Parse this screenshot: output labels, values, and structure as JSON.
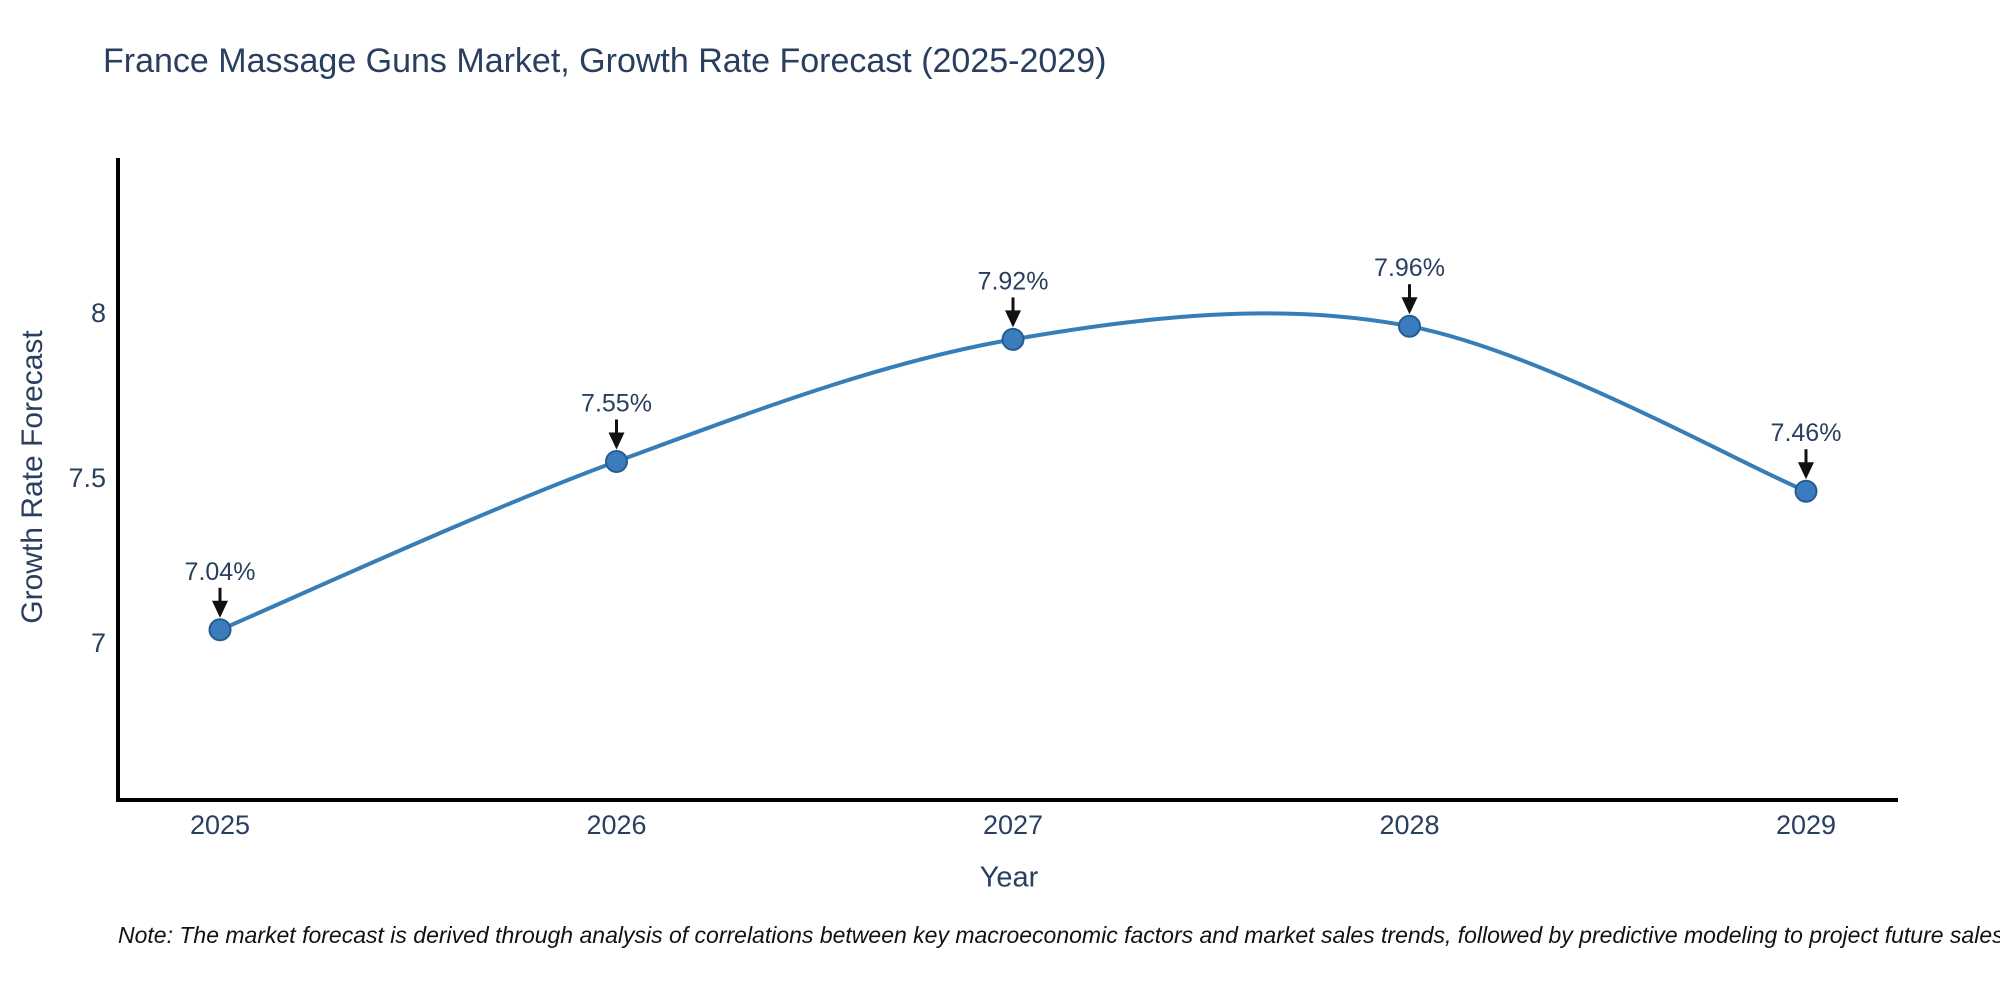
{
  "page": {
    "background": "#ffffff"
  },
  "chart_data": {
    "type": "line",
    "title": "France Massage Guns Market, Growth Rate Forecast (2025-2029)",
    "xlabel": "Year",
    "ylabel": "Growth Rate Forecast",
    "x": [
      2025,
      2026,
      2027,
      2028,
      2029
    ],
    "values": [
      7.04,
      7.55,
      7.92,
      7.96,
      7.46
    ],
    "point_labels": [
      "7.04%",
      "7.55%",
      "7.92%",
      "7.96%",
      "7.46%"
    ],
    "xtick_labels": [
      "2025",
      "2026",
      "2027",
      "2028",
      "2029"
    ],
    "yticks": [
      7,
      7.5,
      8
    ],
    "ytick_labels": [
      "7",
      "7.5",
      "8"
    ],
    "ylim": [
      6.52,
      8.46
    ],
    "grid": false,
    "legend_position": "none",
    "line_shape": "spline",
    "colors": {
      "line": "#377eb8",
      "marker_fill": "#3a7cbd",
      "marker_edge": "#255e8e",
      "arrow": "#111111",
      "text": "#2a3f5f",
      "axis": "#000000"
    }
  },
  "note": {
    "text": "Note: The market forecast is derived through analysis of correlations between key macroeconomic factors and market sales trends, followed by predictive modeling to project future sales"
  }
}
